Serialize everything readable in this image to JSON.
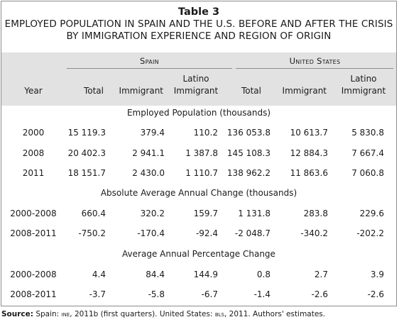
{
  "table": {
    "label": "Table 3",
    "title_line1": "EMPLOYED POPULATION IN SPAIN AND THE U.S. BEFORE AND AFTER THE CRISIS",
    "title_line2": "BY IMMIGRATION EXPERIENCE AND REGION OF ORIGIN",
    "groups": [
      "Spain",
      "United States"
    ],
    "col_year": "Year",
    "col_total": "Total",
    "col_immigrant": "Immigrant",
    "col_latino_1": "Latino",
    "col_latino_2": "Immigrant",
    "sections": [
      {
        "heading": "Employed Population (thousands)",
        "rows": [
          {
            "year": "2000",
            "values": [
              "15 119.3",
              "379.4",
              "110.2",
              "136 053.8",
              "10 613.7",
              "5 830.8"
            ]
          },
          {
            "year": "2008",
            "values": [
              "20 402.3",
              "2 941.1",
              "1 387.8",
              "145 108.3",
              "12 884.3",
              "7 667.4"
            ]
          },
          {
            "year": "2011",
            "values": [
              "18 151.7",
              "2 430.0",
              "1 110.7",
              "138 962.2",
              "11 863.6",
              "7 060.8"
            ]
          }
        ]
      },
      {
        "heading": "Absolute Average Annual Change (thousands)",
        "rows": [
          {
            "year": "2000-2008",
            "values": [
              "660.4",
              "320.2",
              "159.7",
              "1 131.8",
              "283.8",
              "229.6"
            ]
          },
          {
            "year": "2008-2011",
            "values": [
              "-750.2",
              "-170.4",
              "-92.4",
              "-2 048.7",
              "-340.2",
              "-202.2"
            ]
          }
        ]
      },
      {
        "heading": "Average Annual Percentage Change",
        "rows": [
          {
            "year": "2000-2008",
            "values": [
              "4.4",
              "84.4",
              "144.9",
              "0.8",
              "2.7",
              "3.9"
            ]
          },
          {
            "year": "2008-2011",
            "values": [
              "-3.7",
              "-5.8",
              "-6.7",
              "-1.4",
              "-2.6",
              "-2.6"
            ]
          }
        ]
      }
    ]
  },
  "source": {
    "label": "Source:",
    "part1": " Spain: ",
    "ine": "ine",
    "part2": ", 2011b (first quarters). United States: ",
    "bls": "bls",
    "part3": ", 2011. Authors' estimates."
  }
}
